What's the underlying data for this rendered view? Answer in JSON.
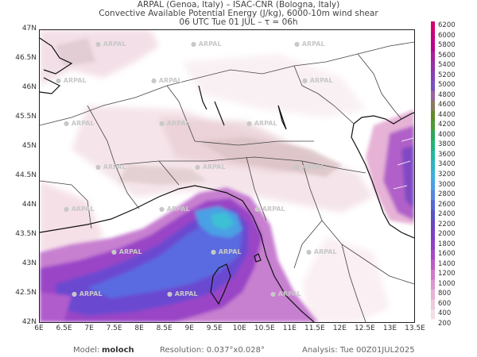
{
  "header": {
    "line1": "ARPAL (Genoa, Italy)  –  ISAC-CNR (Bologna, Italy)",
    "line2": "Convective Available Potential Energy (J/kg), 6000-10m wind shear",
    "line3": "06 UTC Tue 01 JUL  –  τ = 06h"
  },
  "map": {
    "lat_labels": [
      "47N",
      "46.5N",
      "46N",
      "45.5N",
      "45N",
      "44.5N",
      "44N",
      "43.5N",
      "43N",
      "42.5N",
      "42N"
    ],
    "lon_labels": [
      "6E",
      "6.5E",
      "7E",
      "7.5E",
      "8E",
      "8.5E",
      "9E",
      "9.5E",
      "10E",
      "10.5E",
      "11E",
      "11.5E",
      "12E",
      "12.5E",
      "13E",
      "13.5E"
    ],
    "watermark": "ARPAL"
  },
  "colorbar": {
    "labels": [
      "6200",
      "6000",
      "5800",
      "5600",
      "5400",
      "5200",
      "5000",
      "4800",
      "4600",
      "4400",
      "4200",
      "4000",
      "3800",
      "3600",
      "3400",
      "3200",
      "3000",
      "2800",
      "2600",
      "2400",
      "2200",
      "2000",
      "1800",
      "1600",
      "1400",
      "1200",
      "1000",
      "800",
      "600",
      "400",
      "200"
    ],
    "colors": [
      "#d4006f",
      "#c6007f",
      "#b8008d",
      "#a8209a",
      "#9830a8",
      "#8a40b4",
      "#7a50c0",
      "#9a64a0",
      "#8a7a5c",
      "#5f8a2a",
      "#4c9a3a",
      "#2aa85a",
      "#1eb47a",
      "#22b8a0",
      "#2ab4c4",
      "#3cb0dc",
      "#4aa0e4",
      "#5a84e0",
      "#5868d4",
      "#5a52c8",
      "#6a44c4",
      "#7c40c2",
      "#9040c4",
      "#a848c4",
      "#c05cc8",
      "#d078cc",
      "#dc96d0",
      "#e6b2d6",
      "#eecadc",
      "#f4dde6",
      "#ffffff"
    ]
  },
  "footer": {
    "model_label": "Model:",
    "model_value": "moloch",
    "resolution": "Resolution: 0.037°x0.028°",
    "analysis": "Analysis: Tue 00Z01JUL2025"
  }
}
